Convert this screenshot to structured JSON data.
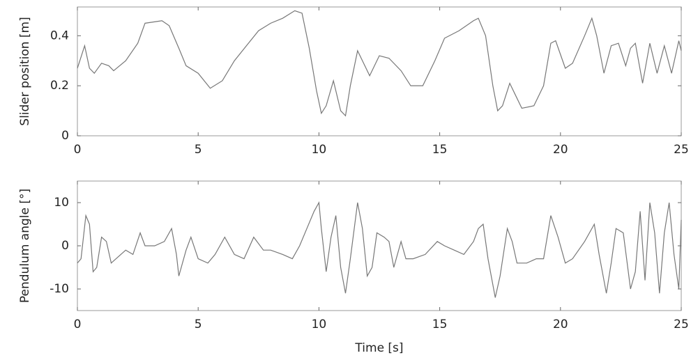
{
  "chart_data": [
    {
      "type": "line",
      "y_label": "Slider position [m]",
      "color": "#777777",
      "x": [
        0,
        0.3,
        0.5,
        0.7,
        1.0,
        1.3,
        1.5,
        2.0,
        2.5,
        2.8,
        3.5,
        3.8,
        4.2,
        4.5,
        5.0,
        5.5,
        6.0,
        6.5,
        7.0,
        7.5,
        8.0,
        8.5,
        9.0,
        9.3,
        9.6,
        9.9,
        10.1,
        10.3,
        10.6,
        10.9,
        11.1,
        11.3,
        11.6,
        11.9,
        12.1,
        12.5,
        12.9,
        13.4,
        13.8,
        14.3,
        14.8,
        15.2,
        15.8,
        16.4,
        16.6,
        16.9,
        17.2,
        17.4,
        17.6,
        17.9,
        18.1,
        18.4,
        18.9,
        19.3,
        19.6,
        19.8,
        20.2,
        20.5,
        21.0,
        21.3,
        21.5,
        21.8,
        22.1,
        22.4,
        22.7,
        22.9,
        23.1,
        23.4,
        23.7,
        24.0,
        24.3,
        24.6,
        24.9,
        25
      ],
      "values": [
        0.27,
        0.36,
        0.27,
        0.25,
        0.29,
        0.28,
        0.26,
        0.3,
        0.37,
        0.45,
        0.46,
        0.44,
        0.35,
        0.28,
        0.25,
        0.19,
        0.22,
        0.3,
        0.36,
        0.42,
        0.45,
        0.47,
        0.5,
        0.49,
        0.35,
        0.18,
        0.09,
        0.12,
        0.22,
        0.1,
        0.08,
        0.2,
        0.34,
        0.28,
        0.24,
        0.32,
        0.31,
        0.26,
        0.2,
        0.2,
        0.3,
        0.39,
        0.42,
        0.46,
        0.47,
        0.4,
        0.2,
        0.1,
        0.12,
        0.21,
        0.17,
        0.11,
        0.12,
        0.2,
        0.37,
        0.38,
        0.27,
        0.29,
        0.4,
        0.47,
        0.4,
        0.25,
        0.36,
        0.37,
        0.28,
        0.35,
        0.37,
        0.21,
        0.37,
        0.25,
        0.36,
        0.25,
        0.38,
        0.34
      ],
      "xlim": [
        0,
        25
      ],
      "xticks": [
        0,
        5,
        10,
        15,
        20,
        25
      ],
      "ylim": [
        0,
        0.515
      ],
      "yticks": [
        0,
        0.2,
        0.4
      ]
    },
    {
      "type": "line",
      "y_label": "Pendulum angle [°]",
      "x_label": "Time [s]",
      "color": "#777777",
      "x": [
        0,
        0.15,
        0.35,
        0.5,
        0.65,
        0.8,
        1.0,
        1.2,
        1.4,
        1.6,
        2.0,
        2.3,
        2.6,
        2.8,
        3.2,
        3.6,
        3.9,
        4.1,
        4.2,
        4.5,
        4.7,
        5.0,
        5.4,
        5.7,
        6.1,
        6.5,
        6.9,
        7.3,
        7.7,
        8.0,
        8.5,
        8.9,
        9.2,
        9.5,
        9.8,
        10.0,
        10.1,
        10.3,
        10.5,
        10.7,
        10.9,
        11.1,
        11.3,
        11.6,
        11.8,
        12.0,
        12.2,
        12.4,
        12.7,
        12.9,
        13.1,
        13.4,
        13.6,
        13.9,
        14.4,
        14.9,
        15.2,
        15.6,
        16.0,
        16.4,
        16.6,
        16.8,
        17.0,
        17.3,
        17.5,
        17.8,
        18.0,
        18.2,
        18.6,
        19.0,
        19.3,
        19.6,
        19.9,
        20.2,
        20.5,
        21.0,
        21.4,
        21.6,
        21.9,
        22.1,
        22.3,
        22.6,
        22.9,
        23.1,
        23.3,
        23.5,
        23.7,
        23.9,
        24.1,
        24.3,
        24.5,
        24.7,
        24.9,
        25
      ],
      "values": [
        -4,
        -3,
        7,
        5,
        -6,
        -5,
        2,
        1,
        -4,
        -3,
        -1,
        -2,
        3,
        0,
        0,
        1,
        4,
        -2,
        -7,
        -1,
        2,
        -3,
        -4,
        -2,
        2,
        -2,
        -3,
        2,
        -1,
        -1,
        -2,
        -3,
        0,
        4,
        8,
        10,
        4,
        -6,
        2,
        7,
        -5,
        -11,
        -3,
        10,
        4,
        -7,
        -5,
        3,
        2,
        1,
        -5,
        1,
        -3,
        -3,
        -2,
        1,
        0,
        -1,
        -2,
        1,
        4,
        5,
        -3,
        -12,
        -7,
        4,
        1,
        -4,
        -4,
        -3,
        -3,
        7,
        2,
        -4,
        -3,
        1,
        5,
        -2,
        -11,
        -4,
        4,
        3,
        -10,
        -6,
        8,
        -8,
        10,
        3,
        -11,
        3,
        10,
        -2,
        -10,
        6
      ],
      "xlim": [
        0,
        25
      ],
      "xticks": [
        0,
        5,
        10,
        15,
        20,
        25
      ],
      "ylim": [
        -15,
        15
      ],
      "yticks": [
        -10,
        0,
        10
      ]
    }
  ]
}
